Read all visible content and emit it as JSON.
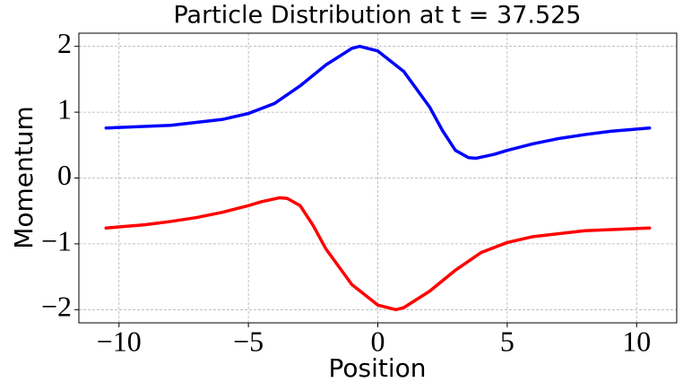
{
  "chart_data": {
    "type": "line",
    "title": "Particle Distribution at t = 37.525",
    "x_label": "Position",
    "y_label": "Momentum",
    "xlim": [
      -11.55,
      11.55
    ],
    "ylim": [
      -2.2,
      2.2
    ],
    "xticks": [
      {
        "value": -10,
        "label": "−10"
      },
      {
        "value": -5,
        "label": "−5"
      },
      0,
      5,
      10
    ],
    "yticks": [
      {
        "value": -2,
        "label": "−2"
      },
      {
        "value": -1,
        "label": "−1"
      },
      0,
      1,
      2
    ],
    "grid": true,
    "series": [
      {
        "color": "#0000ff",
        "x": [
          -10.5,
          -8,
          -6,
          -5,
          -4,
          -3,
          -2,
          -1,
          -0.7,
          0,
          1,
          2,
          2.5,
          3,
          3.5,
          3.8,
          4.5,
          5,
          6,
          7,
          8,
          9,
          10.5
        ],
        "values": [
          0.76,
          0.8,
          0.89,
          0.98,
          1.13,
          1.4,
          1.72,
          1.97,
          2.0,
          1.93,
          1.62,
          1.08,
          0.72,
          0.42,
          0.31,
          0.3,
          0.36,
          0.42,
          0.52,
          0.6,
          0.66,
          0.71,
          0.76
        ]
      },
      {
        "color": "#ff0000",
        "x": [
          -10.5,
          -9,
          -8,
          -7,
          -6,
          -5,
          -4.5,
          -3.8,
          -3.5,
          -3,
          -2.5,
          -2,
          -1,
          0,
          0.7,
          1,
          2,
          3,
          4,
          5,
          6,
          8,
          10.5
        ],
        "values": [
          -0.76,
          -0.71,
          -0.66,
          -0.6,
          -0.52,
          -0.42,
          -0.36,
          -0.3,
          -0.31,
          -0.42,
          -0.72,
          -1.08,
          -1.62,
          -1.93,
          -2.0,
          -1.97,
          -1.72,
          -1.4,
          -1.13,
          -0.98,
          -0.89,
          -0.8,
          -0.76
        ]
      }
    ]
  }
}
